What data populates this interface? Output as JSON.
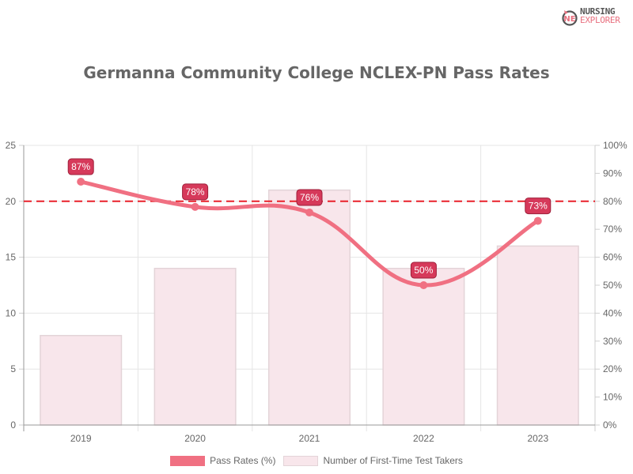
{
  "brand": {
    "line1": "NURSING",
    "line2": "EXPLORER"
  },
  "chart_data": {
    "type": "bar",
    "title": "Germanna Community College NCLEX-PN Pass Rates",
    "categories": [
      "2019",
      "2020",
      "2021",
      "2022",
      "2023"
    ],
    "series": [
      {
        "name": "Pass Rates (%)",
        "type": "line",
        "axis": "right",
        "values": [
          87,
          78,
          76,
          50,
          73
        ],
        "labels": [
          "87%",
          "78%",
          "76%",
          "50%",
          "73%"
        ],
        "color": "#f07082"
      },
      {
        "name": "Number of First-Time Test Takers",
        "type": "bar",
        "axis": "left",
        "values": [
          8,
          14,
          21,
          14,
          16
        ],
        "color": "#f8e6eb"
      }
    ],
    "y_left": {
      "ylim": [
        0,
        25
      ],
      "ticks": [
        "0",
        "5",
        "10",
        "15",
        "20",
        "25"
      ]
    },
    "y_right": {
      "ylim": [
        0,
        100
      ],
      "ticks": [
        "0%",
        "10%",
        "20%",
        "30%",
        "40%",
        "50%",
        "60%",
        "70%",
        "80%",
        "90%",
        "100%"
      ]
    },
    "annotations": [
      {
        "type": "hline",
        "axis": "right",
        "value": 80,
        "style": "dashed",
        "color": "#e8202a"
      }
    ],
    "legend_position": "bottom",
    "grid": true
  },
  "legend": {
    "items": [
      {
        "label": "Pass Rates (%)"
      },
      {
        "label": "Number of First-Time Test Takers"
      }
    ]
  }
}
